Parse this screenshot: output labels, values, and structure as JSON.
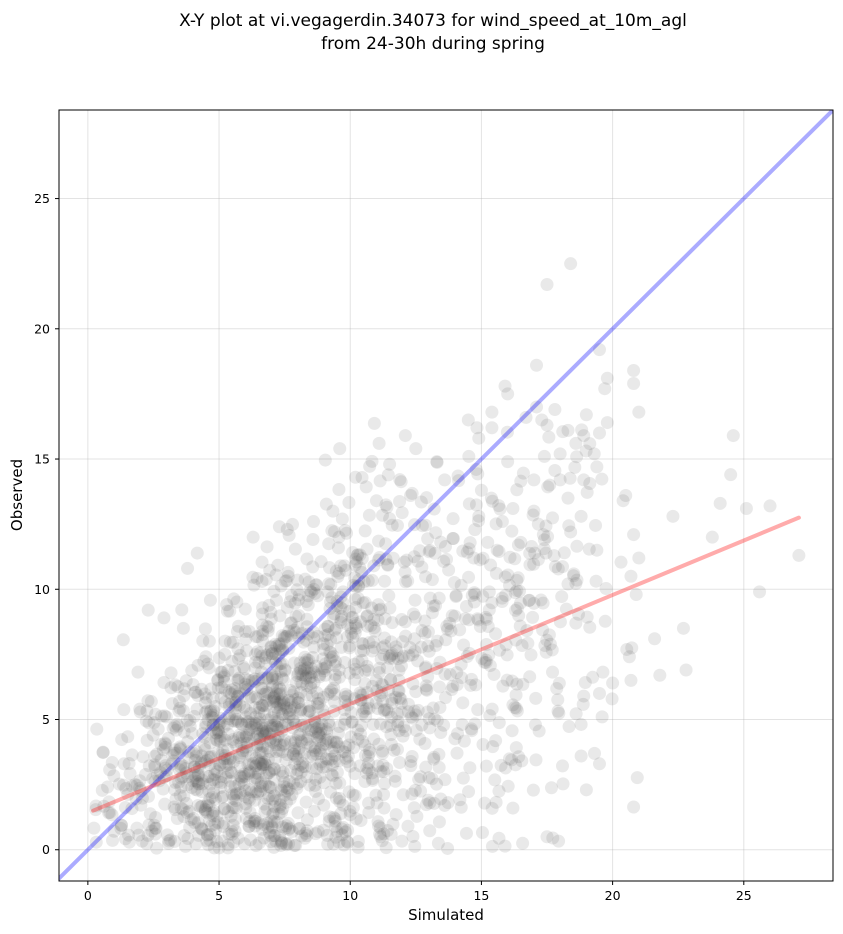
{
  "chart_data": {
    "type": "scatter",
    "title_lines": [
      "X-Y plot at vi.vegagerdin.34073 for wind_speed_at_10m_agl",
      "from 24-30h during spring"
    ],
    "xlabel": "Simulated",
    "ylabel": "Observed",
    "xlim": [
      -1.1,
      28.4
    ],
    "ylim": [
      -1.2,
      28.4
    ],
    "xticks": [
      0,
      5,
      10,
      15,
      20,
      25
    ],
    "yticks": [
      0,
      5,
      10,
      15,
      20,
      25
    ],
    "grid": true,
    "point_color": "#555555",
    "point_count": 1900,
    "identity_line": {
      "color": "#0000ff",
      "from": [
        -1.1,
        -1.1
      ],
      "to": [
        28.4,
        28.4
      ]
    },
    "fit_line": {
      "color": "#ff2222",
      "from": [
        0.2,
        1.5
      ],
      "to": [
        27.1,
        12.75
      ]
    },
    "visible_points": [
      [
        18.4,
        22.5
      ],
      [
        17.5,
        21.7
      ],
      [
        19.5,
        19.2
      ],
      [
        17.1,
        18.6
      ],
      [
        20.8,
        18.4
      ],
      [
        19.8,
        18.1
      ],
      [
        20.8,
        17.9
      ],
      [
        19.7,
        17.7
      ],
      [
        15.9,
        17.8
      ],
      [
        16.0,
        17.5
      ],
      [
        17.1,
        17.0
      ],
      [
        17.8,
        16.9
      ],
      [
        17.3,
        16.5
      ],
      [
        21.0,
        16.8
      ],
      [
        19.0,
        16.7
      ],
      [
        19.8,
        16.4
      ],
      [
        15.4,
        16.8
      ],
      [
        16.7,
        16.6
      ],
      [
        18.3,
        16.1
      ],
      [
        18.9,
        15.9
      ],
      [
        17.5,
        16.3
      ],
      [
        14.5,
        16.5
      ],
      [
        19.5,
        16.0
      ],
      [
        24.6,
        15.9
      ],
      [
        12.1,
        15.9
      ],
      [
        11.1,
        15.6
      ],
      [
        15.4,
        16.2
      ],
      [
        14.9,
        15.8
      ],
      [
        18.6,
        15.6
      ],
      [
        19.3,
        15.2
      ],
      [
        17.4,
        15.1
      ],
      [
        18.0,
        15.2
      ],
      [
        19.4,
        14.7
      ],
      [
        24.5,
        14.4
      ],
      [
        9.6,
        15.4
      ],
      [
        12.5,
        15.4
      ],
      [
        11.5,
        14.8
      ],
      [
        13.3,
        14.9
      ],
      [
        14.8,
        14.6
      ],
      [
        16.0,
        14.9
      ],
      [
        10.2,
        14.3
      ],
      [
        13.6,
        14.2
      ],
      [
        17.0,
        14.2
      ],
      [
        17.6,
        14.0
      ],
      [
        18.9,
        14.2
      ],
      [
        20.5,
        13.6
      ],
      [
        20.4,
        13.4
      ],
      [
        24.1,
        13.3
      ],
      [
        26.0,
        13.2
      ],
      [
        25.1,
        13.1
      ],
      [
        15.0,
        13.8
      ],
      [
        16.2,
        13.1
      ],
      [
        18.3,
        13.5
      ],
      [
        17.0,
        13.0
      ],
      [
        15.8,
        12.6
      ],
      [
        14.9,
        12.8
      ],
      [
        12.3,
        13.6
      ],
      [
        11.0,
        13.4
      ],
      [
        9.7,
        12.7
      ],
      [
        8.6,
        12.6
      ],
      [
        7.3,
        12.4
      ],
      [
        7.6,
        12.3
      ],
      [
        6.3,
        12.0
      ],
      [
        18.8,
        12.8
      ],
      [
        22.3,
        12.8
      ],
      [
        18.4,
        12.2
      ],
      [
        20.8,
        12.1
      ],
      [
        23.8,
        12.0
      ],
      [
        19.4,
        11.5
      ],
      [
        21.0,
        11.2
      ],
      [
        27.1,
        11.3
      ],
      [
        15.6,
        11.5
      ],
      [
        17.4,
        11.9
      ],
      [
        16.5,
        11.8
      ],
      [
        20.7,
        10.5
      ],
      [
        20.9,
        9.8
      ],
      [
        18.3,
        10.2
      ],
      [
        18.6,
        8.7
      ],
      [
        21.6,
        8.1
      ],
      [
        22.7,
        8.5
      ],
      [
        25.6,
        9.9
      ],
      [
        3.8,
        10.8
      ],
      [
        2.3,
        9.2
      ],
      [
        2.9,
        8.9
      ],
      [
        21.8,
        6.7
      ],
      [
        22.8,
        6.9
      ],
      [
        20.0,
        6.4
      ],
      [
        20.7,
        6.5
      ],
      [
        19.5,
        6.0
      ],
      [
        19.6,
        5.1
      ],
      [
        18.9,
        5.9
      ],
      [
        17.5,
        0.5
      ],
      [
        19.0,
        2.3
      ],
      [
        16.2,
        1.6
      ],
      [
        19.5,
        3.3
      ],
      [
        18.8,
        3.6
      ]
    ]
  }
}
